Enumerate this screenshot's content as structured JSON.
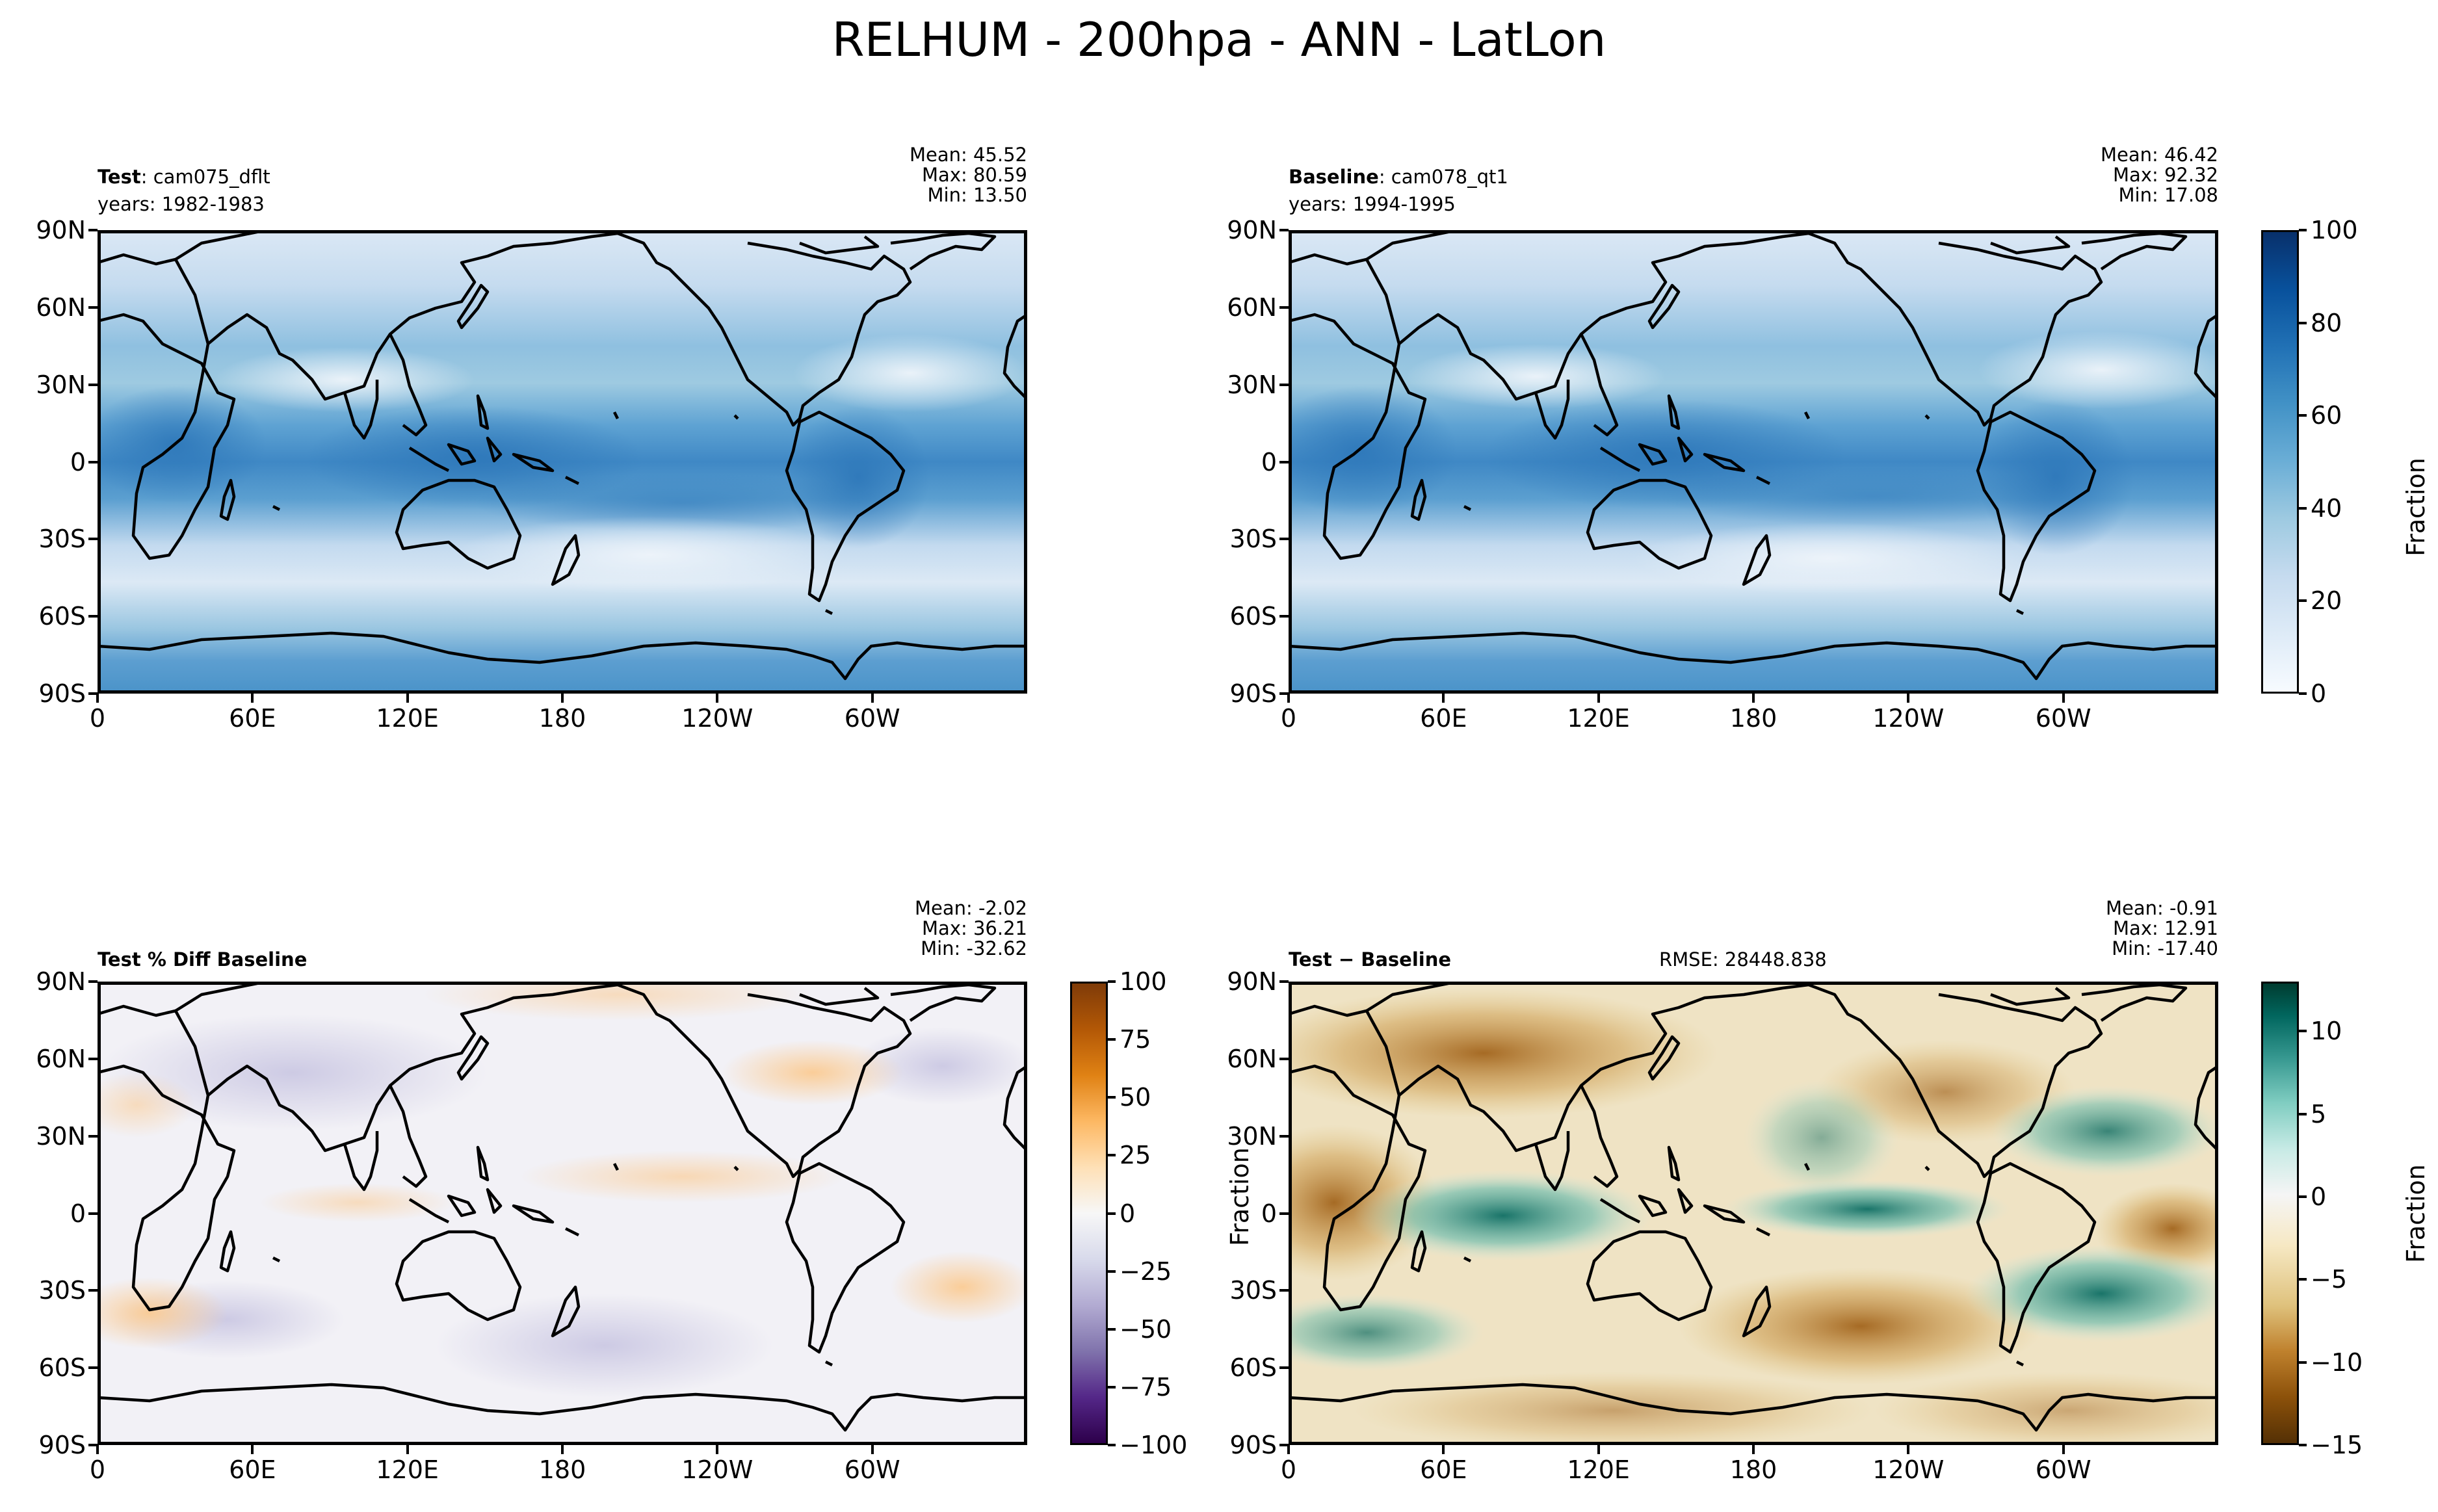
{
  "figure": {
    "suptitle": "RELHUM - 200hpa - ANN - LatLon"
  },
  "colors": {
    "blues": [
      "#f7fbff",
      "#deebf7",
      "#c6dbef",
      "#9ecae1",
      "#6baed6",
      "#4292c6",
      "#2171b5",
      "#08519c",
      "#08306b"
    ],
    "purple_orange": [
      "#2d004b",
      "#542788",
      "#8073ac",
      "#b2abd2",
      "#d8daeb",
      "#f7f7f7",
      "#fee0b6",
      "#fdb863",
      "#e08214",
      "#b35806",
      "#7f3b08"
    ],
    "brown_teal": [
      "#543005",
      "#8c510a",
      "#bf812d",
      "#dfc27d",
      "#f6e8c3",
      "#f5f5f5",
      "#c7eae5",
      "#80cdc1",
      "#35978f",
      "#01665e",
      "#003c30"
    ]
  },
  "panels": {
    "test": {
      "label": "Test",
      "name": ": cam075_dflt",
      "years": "years: 1982-1983",
      "mean": "Mean: 45.52",
      "max": "Max: 80.59",
      "min": "Min: 13.50"
    },
    "baseline": {
      "label": "Baseline",
      "name": ": cam078_qt1",
      "years": "years: 1994-1995",
      "mean": "Mean: 46.42",
      "max": "Max: 92.32",
      "min": "Min: 17.08"
    },
    "pctdiff": {
      "label": "Test % Diff Baseline",
      "mean": "Mean: -2.02",
      "max": "Max: 36.21",
      "min": "Min: -32.62"
    },
    "diff": {
      "label": "Test",
      "minus": " − ",
      "label2": "Baseline",
      "rmse": "RMSE: 28448.838",
      "mean": "Mean: -0.91",
      "max": "Max: 12.91",
      "min": "Min: -17.40"
    }
  },
  "axes": {
    "lat_ticks": [
      "90N",
      "60N",
      "30N",
      "0",
      "30S",
      "60S",
      "90S"
    ],
    "lon_ticks": [
      "0",
      "60E",
      "120E",
      "180",
      "120W",
      "60W"
    ]
  },
  "colorbars": {
    "main": {
      "label": "Fraction",
      "ticks": [
        "100",
        "80",
        "60",
        "40",
        "20",
        "0"
      ],
      "range": [
        0,
        100
      ]
    },
    "pctdiff": {
      "ticks": [
        "100",
        "75",
        "50",
        "25",
        "0",
        "−25",
        "−50",
        "−75",
        "−100"
      ],
      "range": [
        -100,
        100
      ]
    },
    "diff": {
      "label": "Fraction",
      "ticks": [
        "10",
        "5",
        "0",
        "−5",
        "−10",
        "−15"
      ],
      "range": [
        -15,
        13
      ]
    },
    "diff_left_label": "Fraction"
  },
  "chart_data": [
    {
      "type": "heatmap",
      "title": "Test: cam075_dflt",
      "subtitle": "years: 1982-1983",
      "xlabel": "",
      "ylabel": "",
      "xlim": [
        0,
        360
      ],
      "ylim": [
        -90,
        90
      ],
      "colorbar_range": [
        0,
        100
      ],
      "colorbar_label": "Fraction",
      "stats": {
        "mean": 45.52,
        "max": 80.59,
        "min": 13.5
      },
      "pattern": "high RELHUM (~60-75) in tropical band over Maritime Continent, Africa, South America; low (~15-25) in subtropics; moderate at high latitudes"
    },
    {
      "type": "heatmap",
      "title": "Baseline: cam078_qt1",
      "subtitle": "years: 1994-1995",
      "xlim": [
        0,
        360
      ],
      "ylim": [
        -90,
        90
      ],
      "colorbar_range": [
        0,
        100
      ],
      "colorbar_label": "Fraction",
      "stats": {
        "mean": 46.42,
        "max": 92.32,
        "min": 17.08
      }
    },
    {
      "type": "heatmap",
      "title": "Test % Diff Baseline",
      "xlim": [
        0,
        360
      ],
      "ylim": [
        -90,
        90
      ],
      "colorbar_range": [
        -100,
        100
      ],
      "stats": {
        "mean": -2.02,
        "max": 36.21,
        "min": -32.62
      }
    },
    {
      "type": "heatmap",
      "title": "Test − Baseline",
      "rmse": 28448.838,
      "xlim": [
        0,
        360
      ],
      "ylim": [
        -90,
        90
      ],
      "colorbar_range": [
        -15,
        13
      ],
      "colorbar_label": "Fraction",
      "stats": {
        "mean": -0.91,
        "max": 12.91,
        "min": -17.4
      }
    }
  ]
}
